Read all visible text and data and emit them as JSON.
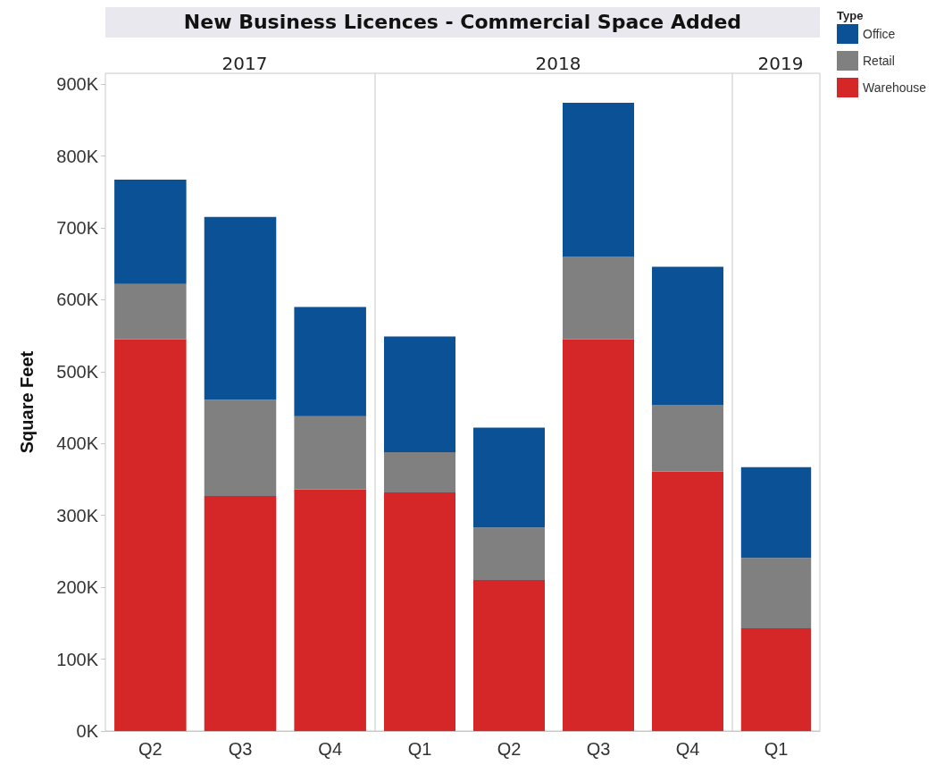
{
  "chart_data": [
    {
      "type": "bar",
      "title": "New Business Licences - Commercial Space Added",
      "subtitle": "2017",
      "ylabel": "Square Feet",
      "categories": [
        "Q2",
        "Q3",
        "Q4"
      ],
      "stacked": true,
      "ylim": [
        0,
        915000
      ],
      "yticks": [
        {
          "value": 0,
          "label": "0K"
        },
        {
          "value": 100000,
          "label": "100K"
        },
        {
          "value": 200000,
          "label": "200K"
        },
        {
          "value": 300000,
          "label": "300K"
        },
        {
          "value": 400000,
          "label": "400K"
        },
        {
          "value": 500000,
          "label": "500K"
        },
        {
          "value": 600000,
          "label": "600K"
        },
        {
          "value": 700000,
          "label": "700K"
        },
        {
          "value": 800000,
          "label": "800K"
        },
        {
          "value": 900000,
          "label": "900K"
        }
      ],
      "grid": false,
      "legend": false,
      "series": [
        {
          "color": "#d62728",
          "values": [
            545000,
            327000,
            336000
          ]
        },
        {
          "color": "#808080",
          "values": [
            77000,
            134000,
            102000
          ]
        },
        {
          "color": "#0b5196",
          "values": [
            145000,
            254000,
            152000
          ]
        }
      ]
    },
    {
      "type": "bar",
      "subtitle": "2018",
      "categories": [
        "Q1",
        "Q2",
        "Q3",
        "Q4"
      ],
      "stacked": true,
      "ylim": [
        0,
        915000
      ],
      "tick_labels": "x",
      "grid": false,
      "legend": false,
      "series": [
        {
          "color": "#d62728",
          "values": [
            332000,
            210000,
            545000,
            361000
          ]
        },
        {
          "color": "#808080",
          "values": [
            56000,
            73000,
            115000,
            92000
          ]
        },
        {
          "color": "#0b5196",
          "values": [
            161000,
            139000,
            214000,
            193000
          ]
        }
      ]
    },
    {
      "type": "bar",
      "subtitle": "2019",
      "categories": [
        "Q1"
      ],
      "stacked": true,
      "ylim": [
        0,
        915000
      ],
      "tick_labels": "x",
      "grid": false,
      "legend": "right",
      "legend_title": "Type",
      "series": [
        {
          "name": "Warehouse",
          "color": "#d62728",
          "values": [
            143000
          ]
        },
        {
          "name": "Retail",
          "color": "#808080",
          "values": [
            98000
          ]
        },
        {
          "name": "Office",
          "color": "#0b5196",
          "values": [
            126000
          ]
        }
      ]
    }
  ]
}
